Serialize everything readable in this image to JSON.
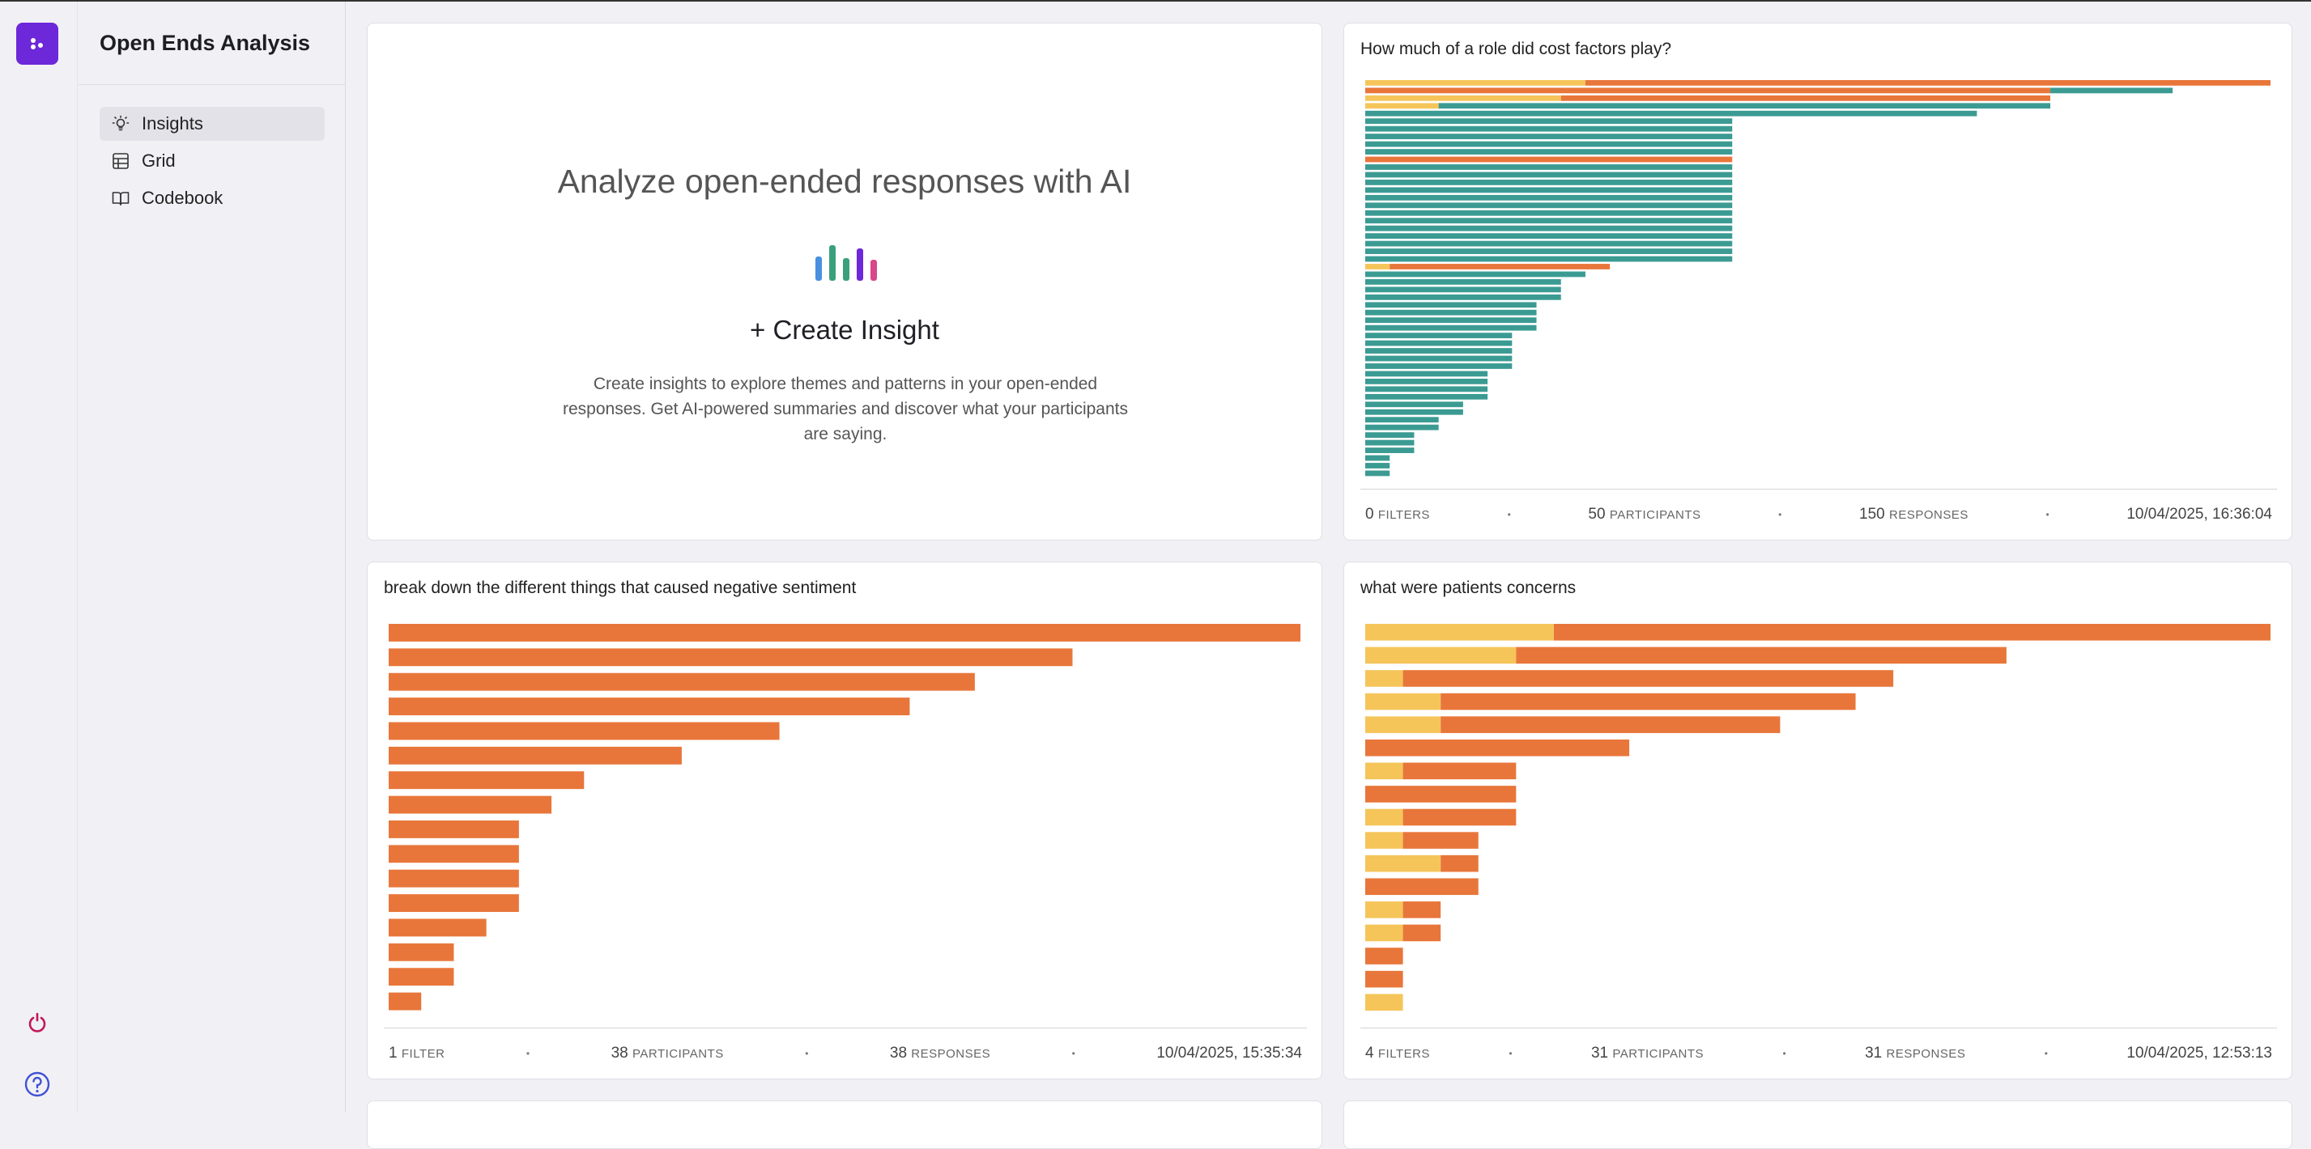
{
  "app": {
    "title": "Open Ends Analysis"
  },
  "nav": {
    "items": [
      {
        "label": "Insights",
        "icon": "lightbulb-icon",
        "active": true
      },
      {
        "label": "Grid",
        "icon": "grid-icon",
        "active": false
      },
      {
        "label": "Codebook",
        "icon": "book-icon",
        "active": false
      }
    ]
  },
  "create": {
    "headline": "Analyze open-ended responses with AI",
    "button_label": "+ Create Insight",
    "description": "Create insights to explore themes and patterns in your open-ended responses. Get AI-powered summaries and discover what your participants are saying."
  },
  "colors": {
    "orange": "#e8763a",
    "yellow": "#f5c55a",
    "teal": "#3b9b93",
    "brand": "#6d28d9"
  },
  "cards": [
    {
      "title": "How much of a role did cost factors play?",
      "footer": {
        "filters": "0",
        "filters_label": "filters",
        "participants": "50",
        "participants_label": "participants",
        "responses": "150",
        "responses_label": "responses",
        "date": "10/04/2025, 16:36:04"
      },
      "chart_data": {
        "type": "bar",
        "stacked": true,
        "orientation": "horizontal",
        "series_names": [
          "yellow",
          "orange",
          "teal"
        ],
        "rows": [
          [
            9,
            28,
            0
          ],
          [
            0,
            28,
            5
          ],
          [
            8,
            20,
            0
          ],
          [
            3,
            0,
            25
          ],
          [
            0,
            0,
            25
          ],
          [
            0,
            0,
            15
          ],
          [
            0,
            0,
            15
          ],
          [
            0,
            0,
            15
          ],
          [
            0,
            0,
            15
          ],
          [
            0,
            0,
            15
          ],
          [
            0,
            15,
            0
          ],
          [
            0,
            0,
            15
          ],
          [
            0,
            0,
            15
          ],
          [
            0,
            0,
            15
          ],
          [
            0,
            0,
            15
          ],
          [
            0,
            0,
            15
          ],
          [
            0,
            0,
            15
          ],
          [
            0,
            0,
            15
          ],
          [
            0,
            0,
            15
          ],
          [
            0,
            0,
            15
          ],
          [
            0,
            0,
            15
          ],
          [
            0,
            0,
            15
          ],
          [
            0,
            0,
            15
          ],
          [
            0,
            0,
            15
          ],
          [
            1,
            9,
            0
          ],
          [
            0,
            0,
            9
          ],
          [
            0,
            0,
            8
          ],
          [
            0,
            0,
            8
          ],
          [
            0,
            0,
            8
          ],
          [
            0,
            0,
            7
          ],
          [
            0,
            0,
            7
          ],
          [
            0,
            0,
            7
          ],
          [
            0,
            0,
            7
          ],
          [
            0,
            0,
            6
          ],
          [
            0,
            0,
            6
          ],
          [
            0,
            0,
            6
          ],
          [
            0,
            0,
            6
          ],
          [
            0,
            0,
            6
          ],
          [
            0,
            0,
            5
          ],
          [
            0,
            0,
            5
          ],
          [
            0,
            0,
            5
          ],
          [
            0,
            0,
            5
          ],
          [
            0,
            0,
            4
          ],
          [
            0,
            0,
            4
          ],
          [
            0,
            0,
            3
          ],
          [
            0,
            0,
            3
          ],
          [
            0,
            0,
            2
          ],
          [
            0,
            0,
            2
          ],
          [
            0,
            0,
            2
          ],
          [
            0,
            0,
            1
          ],
          [
            0,
            0,
            1
          ],
          [
            0,
            0,
            1
          ]
        ]
      }
    },
    {
      "title": "break down the different things that caused negative sentiment",
      "footer": {
        "filters": "1",
        "filters_label": "filter",
        "participants": "38",
        "participants_label": "participants",
        "responses": "38",
        "responses_label": "responses",
        "date": "10/04/2025, 15:35:34"
      },
      "chart_data": {
        "type": "bar",
        "stacked": true,
        "orientation": "horizontal",
        "series_names": [
          "yellow",
          "orange"
        ],
        "rows": [
          [
            0,
            28
          ],
          [
            0,
            21
          ],
          [
            0,
            18
          ],
          [
            0,
            16
          ],
          [
            0,
            12
          ],
          [
            0,
            9
          ],
          [
            0,
            6
          ],
          [
            0,
            5
          ],
          [
            0,
            4
          ],
          [
            0,
            4
          ],
          [
            0,
            4
          ],
          [
            0,
            4
          ],
          [
            0,
            3
          ],
          [
            0,
            2
          ],
          [
            0,
            2
          ],
          [
            0,
            1
          ]
        ]
      }
    },
    {
      "title": "what were patients concerns",
      "footer": {
        "filters": "4",
        "filters_label": "filters",
        "participants": "31",
        "participants_label": "participants",
        "responses": "31",
        "responses_label": "responses",
        "date": "10/04/2025, 12:53:13"
      },
      "chart_data": {
        "type": "bar",
        "stacked": true,
        "orientation": "horizontal",
        "series_names": [
          "yellow",
          "orange"
        ],
        "rows": [
          [
            5,
            19
          ],
          [
            4,
            13
          ],
          [
            1,
            13
          ],
          [
            2,
            11
          ],
          [
            2,
            9
          ],
          [
            0,
            7
          ],
          [
            1,
            3
          ],
          [
            0,
            4
          ],
          [
            1,
            3
          ],
          [
            1,
            2
          ],
          [
            2,
            1
          ],
          [
            0,
            3
          ],
          [
            1,
            1
          ],
          [
            1,
            1
          ],
          [
            0,
            1
          ],
          [
            0,
            1
          ],
          [
            1,
            0
          ]
        ]
      }
    }
  ]
}
